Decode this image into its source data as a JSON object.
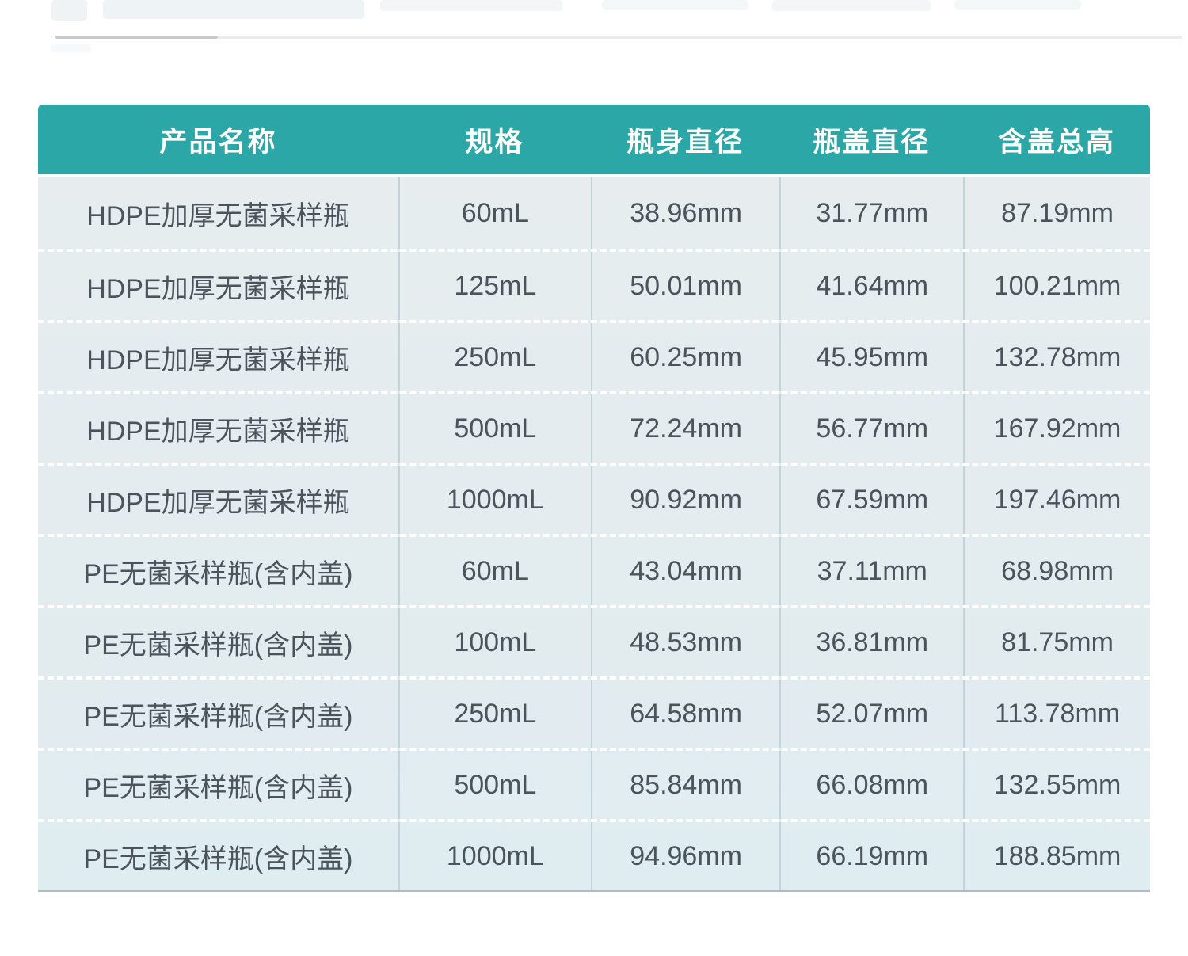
{
  "table": {
    "headers": [
      "产品名称",
      "规格",
      "瓶身直径",
      "瓶盖直径",
      "含盖总高"
    ],
    "rows": [
      [
        "HDPE加厚无菌采样瓶",
        "60mL",
        "38.96mm",
        "31.77mm",
        "87.19mm"
      ],
      [
        "HDPE加厚无菌采样瓶",
        "125mL",
        "50.01mm",
        "41.64mm",
        "100.21mm"
      ],
      [
        "HDPE加厚无菌采样瓶",
        "250mL",
        "60.25mm",
        "45.95mm",
        "132.78mm"
      ],
      [
        "HDPE加厚无菌采样瓶",
        "500mL",
        "72.24mm",
        "56.77mm",
        "167.92mm"
      ],
      [
        "HDPE加厚无菌采样瓶",
        "1000mL",
        "90.92mm",
        "67.59mm",
        "197.46mm"
      ],
      [
        "PE无菌采样瓶(含内盖)",
        "60mL",
        "43.04mm",
        "37.11mm",
        "68.98mm"
      ],
      [
        "PE无菌采样瓶(含内盖)",
        "100mL",
        "48.53mm",
        "36.81mm",
        "81.75mm"
      ],
      [
        "PE无菌采样瓶(含内盖)",
        "250mL",
        "64.58mm",
        "52.07mm",
        "113.78mm"
      ],
      [
        "PE无菌采样瓶(含内盖)",
        "500mL",
        "85.84mm",
        "66.08mm",
        "132.55mm"
      ],
      [
        "PE无菌采样瓶(含内盖)",
        "1000mL",
        "94.96mm",
        "66.19mm",
        "188.85mm"
      ]
    ]
  },
  "colors": {
    "header_bg": "#2aa7a6",
    "header_text": "#ffffff",
    "row_bg": "#e4edf0",
    "row_text": "#4b545c",
    "row_separator": "#ffffff",
    "column_separator": "#c3d4d9",
    "table_bottom_border": "#a9c0c3",
    "top_divider_dark": "#c9c9c9",
    "top_divider_light": "#ebebeb"
  }
}
